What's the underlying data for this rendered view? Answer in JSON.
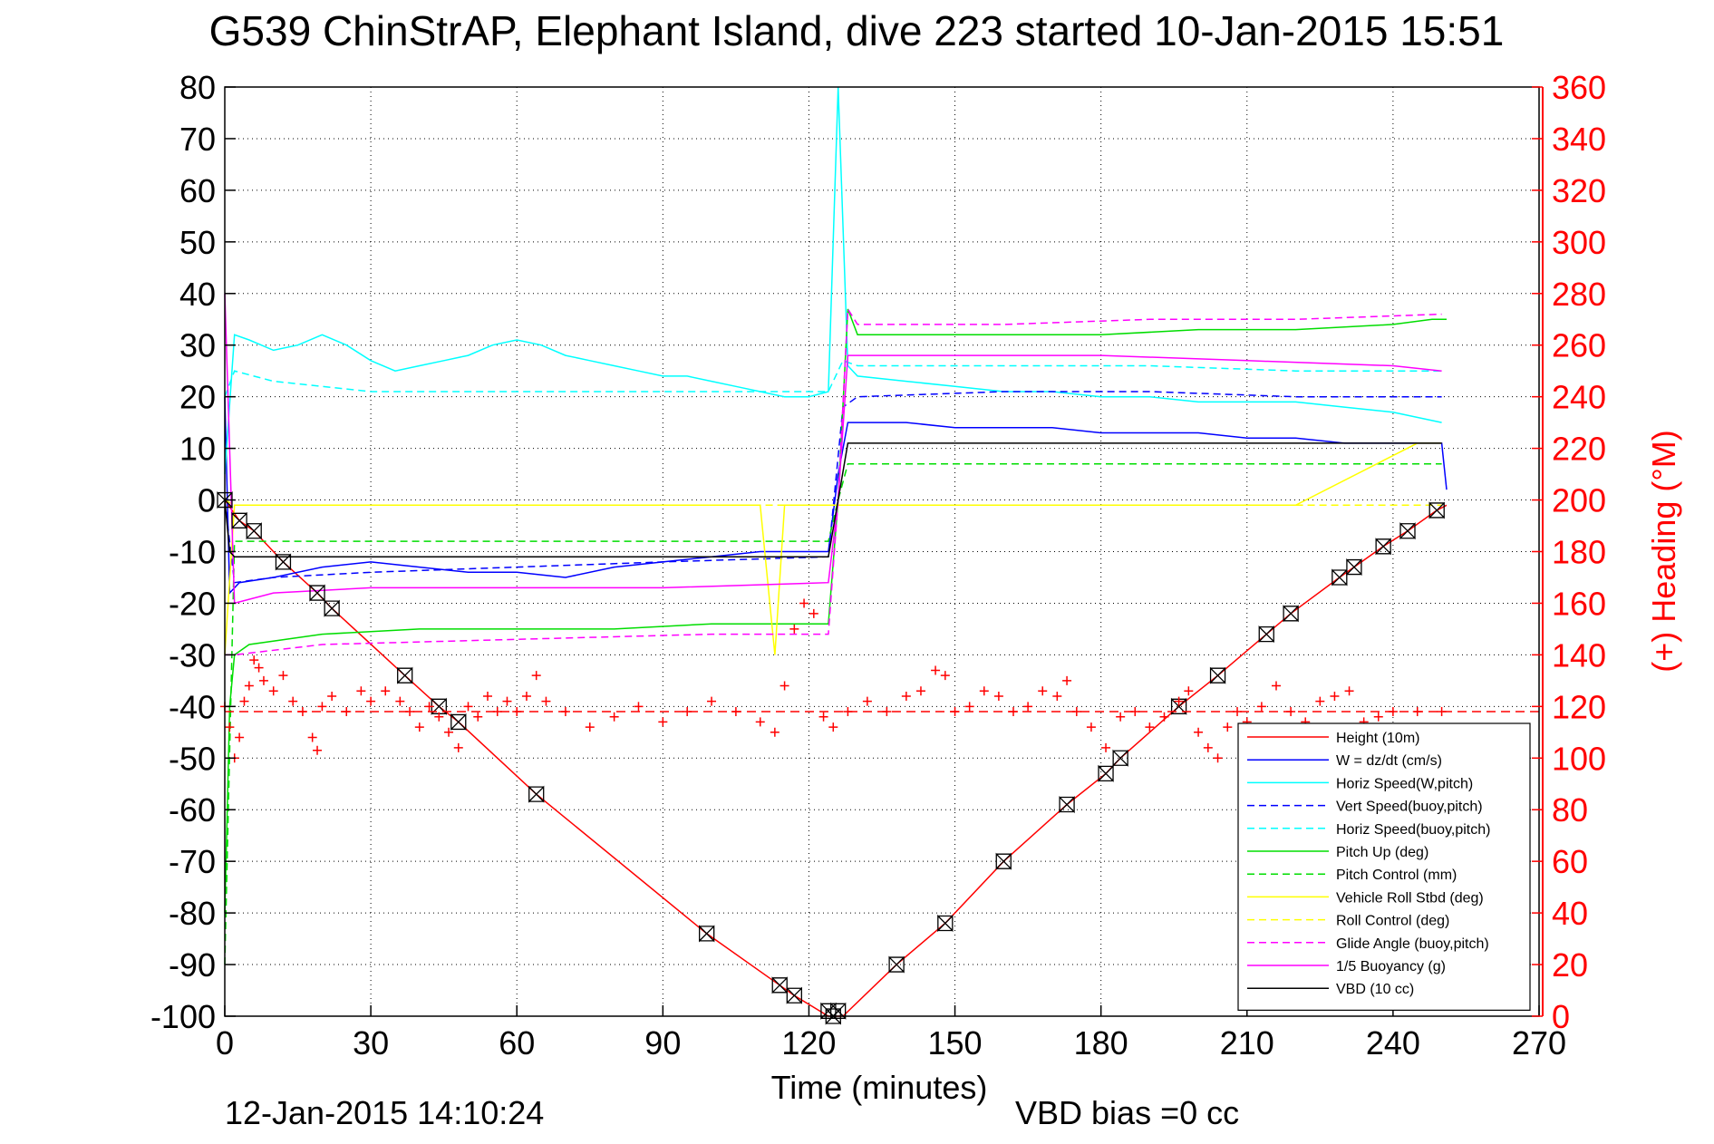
{
  "figure": {
    "title": "G539 ChinStrAP, Elephant Island, dive 223 started 10-Jan-2015 15:51",
    "timestamp": "12-Jan-2015 14:10:24",
    "footnote": "VBD bias =0 cc"
  },
  "colors": {
    "height": "#ff0000",
    "w": "#0000ff",
    "horiz_speed": "#00ffff",
    "pitch": "#00dd00",
    "roll": "#ffff00",
    "glide": "#ff00ff",
    "buoyancy": "#ff00ff",
    "vbd": "#000000",
    "heading": "#ff0000",
    "markers": "#000000"
  },
  "chart_data": {
    "type": "line",
    "xlabel": "Time (minutes)",
    "ylabel": "",
    "y2label": "(+) Heading (°M)",
    "xlim": [
      0,
      270
    ],
    "ylim": [
      -100,
      80
    ],
    "y2lim": [
      0,
      360
    ],
    "xticks": [
      0,
      30,
      60,
      90,
      120,
      150,
      180,
      210,
      240,
      270
    ],
    "yticks": [
      -100,
      -90,
      -80,
      -70,
      -60,
      -50,
      -40,
      -30,
      -20,
      -10,
      0,
      10,
      20,
      30,
      40,
      50,
      60,
      70,
      80
    ],
    "y2ticks": [
      0,
      20,
      40,
      60,
      80,
      100,
      120,
      140,
      160,
      180,
      200,
      220,
      240,
      260,
      280,
      300,
      320,
      340,
      360
    ],
    "grid": true,
    "legend_position": "lower-right",
    "heading_reference": 118,
    "series": [
      {
        "name": "Height (10m)",
        "color_key": "height",
        "dash": "solid",
        "x": [
          0,
          3,
          6,
          12,
          19,
          22,
          37,
          44,
          48,
          64,
          99,
          114,
          117,
          124,
          127,
          138,
          148,
          160,
          173,
          181,
          184,
          196,
          204,
          214,
          219,
          229,
          232,
          238,
          243,
          249,
          251
        ],
        "y": [
          0,
          -4,
          -6,
          -12,
          -18,
          -21,
          -34,
          -40,
          -43,
          -57,
          -84,
          -94,
          -96,
          -100,
          -100,
          -90,
          -82,
          -70,
          -59,
          -53,
          -50,
          -40,
          -34,
          -26,
          -22,
          -15,
          -13,
          -9,
          -6,
          -2,
          -1
        ]
      },
      {
        "name": "W = dz/dt (cm/s)",
        "color_key": "w",
        "dash": "solid",
        "x": [
          0,
          1,
          3,
          10,
          20,
          30,
          40,
          50,
          60,
          70,
          80,
          90,
          100,
          110,
          120,
          124,
          126,
          128,
          140,
          150,
          160,
          170,
          180,
          190,
          200,
          210,
          220,
          230,
          240,
          250,
          251
        ],
        "y": [
          20,
          -18,
          -16,
          -15,
          -13,
          -12,
          -13,
          -14,
          -14,
          -15,
          -13,
          -12,
          -11,
          -10,
          -10,
          -10,
          5,
          15,
          15,
          14,
          14,
          14,
          13,
          13,
          13,
          12,
          12,
          11,
          11,
          11,
          2
        ]
      },
      {
        "name": "Horiz Speed(W,pitch)",
        "color_key": "horiz_speed",
        "dash": "solid",
        "x": [
          0,
          2,
          5,
          10,
          15,
          20,
          25,
          30,
          35,
          40,
          45,
          50,
          55,
          60,
          65,
          70,
          75,
          80,
          85,
          90,
          95,
          100,
          105,
          110,
          115,
          120,
          124,
          126,
          128,
          130,
          140,
          150,
          160,
          170,
          180,
          190,
          200,
          210,
          220,
          230,
          240,
          250
        ],
        "y": [
          5,
          32,
          31,
          29,
          30,
          32,
          30,
          27,
          25,
          26,
          27,
          28,
          30,
          31,
          30,
          28,
          27,
          26,
          25,
          24,
          24,
          23,
          22,
          21,
          20,
          20,
          21,
          80,
          26,
          24,
          23,
          22,
          21,
          21,
          20,
          20,
          19,
          19,
          19,
          18,
          17,
          15
        ]
      },
      {
        "name": "Vert Speed(buoy,pitch)",
        "color_key": "w",
        "dash": "dashed",
        "x": [
          0,
          2,
          10,
          30,
          60,
          90,
          124,
          127,
          130,
          160,
          190,
          220,
          250
        ],
        "y": [
          0,
          -16,
          -15,
          -14,
          -13,
          -12,
          -11,
          18,
          20,
          21,
          21,
          20,
          20
        ]
      },
      {
        "name": "Horiz Speed(buoy,pitch)",
        "color_key": "horiz_speed",
        "dash": "dashed",
        "x": [
          0,
          2,
          10,
          30,
          60,
          90,
          124,
          127,
          130,
          160,
          190,
          220,
          250
        ],
        "y": [
          20,
          25,
          23,
          21,
          21,
          21,
          21,
          27,
          26,
          26,
          26,
          25,
          25
        ]
      },
      {
        "name": "Pitch Up (deg)",
        "color_key": "pitch",
        "dash": "solid",
        "x": [
          0,
          1,
          2,
          5,
          20,
          40,
          60,
          80,
          100,
          124,
          126,
          128,
          130,
          140,
          160,
          180,
          200,
          220,
          240,
          248,
          251
        ],
        "y": [
          -80,
          -40,
          -30,
          -28,
          -26,
          -25,
          -25,
          -25,
          -24,
          -24,
          0,
          37,
          32,
          32,
          32,
          32,
          33,
          33,
          34,
          35,
          35
        ]
      },
      {
        "name": "Pitch Control (mm)",
        "color_key": "pitch",
        "dash": "dashed",
        "x": [
          0,
          2,
          124,
          126,
          128,
          250
        ],
        "y": [
          -90,
          -8,
          -8,
          0,
          7,
          7
        ]
      },
      {
        "name": "Vehicle Roll Stbd (deg)",
        "color_key": "roll",
        "dash": "solid",
        "x": [
          0,
          2,
          10,
          30,
          60,
          90,
          110,
          113,
          115,
          120,
          124,
          130,
          160,
          190,
          220,
          245,
          250
        ],
        "y": [
          -30,
          -1,
          -1,
          -1,
          -1,
          -1,
          -1,
          -30,
          -1,
          -1,
          -1,
          -1,
          -1,
          -1,
          -1,
          11,
          11
        ]
      },
      {
        "name": "Roll Control (deg)",
        "color_key": "roll",
        "dash": "dashed",
        "x": [
          0,
          2,
          250
        ],
        "y": [
          0,
          -1,
          -1
        ]
      },
      {
        "name": "Glide Angle (buoy,pitch)",
        "color_key": "glide",
        "dash": "dashed",
        "x": [
          0,
          2,
          20,
          60,
          100,
          124,
          126,
          128,
          130,
          160,
          190,
          220,
          250
        ],
        "y": [
          -30,
          -30,
          -28,
          -27,
          -26,
          -26,
          0,
          37,
          34,
          34,
          35,
          35,
          36
        ]
      },
      {
        "name": "1/5 Buoyancy (g)",
        "color_key": "buoyancy",
        "dash": "solid",
        "x": [
          0,
          2,
          10,
          30,
          60,
          90,
          124,
          126,
          128,
          150,
          180,
          210,
          240,
          250
        ],
        "y": [
          40,
          -20,
          -18,
          -17,
          -17,
          -17,
          -16,
          0,
          28,
          28,
          28,
          27,
          26,
          25
        ]
      },
      {
        "name": "VBD (10 cc)",
        "color_key": "vbd",
        "dash": "solid",
        "x": [
          0,
          1,
          2,
          124,
          126,
          128,
          250
        ],
        "y": [
          0,
          -10,
          -11,
          -11,
          0,
          11,
          11
        ]
      }
    ],
    "heading_series": {
      "color_key": "heading",
      "marker": "+",
      "axis": "right",
      "x": [
        0,
        1,
        2,
        3,
        4,
        5,
        6,
        7,
        8,
        10,
        12,
        14,
        16,
        18,
        19,
        20,
        22,
        25,
        28,
        30,
        33,
        36,
        38,
        40,
        42,
        44,
        46,
        48,
        50,
        52,
        54,
        56,
        58,
        60,
        62,
        64,
        66,
        70,
        75,
        80,
        85,
        90,
        95,
        100,
        105,
        110,
        113,
        115,
        117,
        119,
        121,
        123,
        125,
        128,
        132,
        136,
        140,
        143,
        146,
        148,
        150,
        153,
        156,
        159,
        162,
        165,
        168,
        171,
        173,
        175,
        178,
        181,
        184,
        187,
        190,
        193,
        196,
        198,
        200,
        202,
        204,
        206,
        208,
        210,
        213,
        216,
        219,
        222,
        225,
        228,
        231,
        234,
        237,
        240,
        245,
        250
      ],
      "y": [
        120,
        112,
        100,
        108,
        122,
        128,
        138,
        135,
        130,
        126,
        132,
        122,
        118,
        108,
        103,
        120,
        124,
        118,
        126,
        122,
        126,
        122,
        118,
        112,
        120,
        116,
        110,
        104,
        120,
        116,
        124,
        118,
        122,
        118,
        124,
        132,
        122,
        118,
        112,
        116,
        120,
        114,
        118,
        122,
        118,
        114,
        110,
        128,
        150,
        160,
        156,
        116,
        112,
        118,
        122,
        118,
        124,
        126,
        134,
        132,
        118,
        120,
        126,
        124,
        118,
        120,
        126,
        124,
        130,
        118,
        112,
        104,
        116,
        118,
        112,
        116,
        122,
        126,
        110,
        104,
        100,
        112,
        118,
        114,
        120,
        128,
        118,
        114,
        122,
        124,
        126,
        114,
        116,
        118,
        118,
        118
      ]
    },
    "dive_markers": {
      "marker": "bowtie",
      "x": [
        0,
        3,
        6,
        12,
        19,
        22,
        37,
        44,
        48,
        64,
        99,
        114,
        117,
        124,
        125,
        126,
        138,
        148,
        160,
        173,
        181,
        184,
        196,
        204,
        214,
        219,
        229,
        232,
        238,
        243,
        249
      ],
      "y": [
        0,
        -4,
        -6,
        -12,
        -18,
        -21,
        -34,
        -40,
        -43,
        -57,
        -84,
        -94,
        -96,
        -99,
        -100,
        -99,
        -90,
        -82,
        -70,
        -59,
        -53,
        -50,
        -40,
        -34,
        -26,
        -22,
        -15,
        -13,
        -9,
        -6,
        -2
      ]
    }
  }
}
